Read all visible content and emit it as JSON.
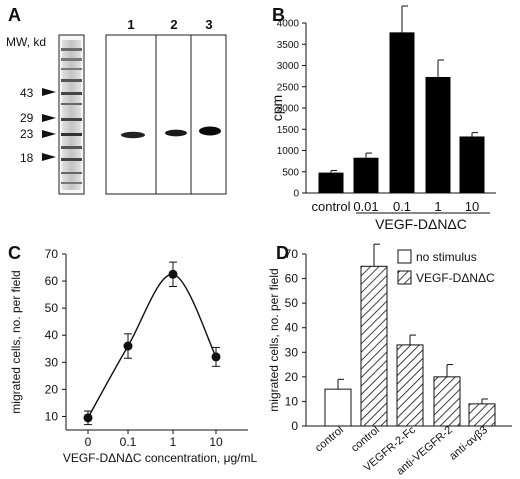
{
  "panels": {
    "A": {
      "label": "A",
      "mw_header": "MW, kd",
      "markers": [
        "43",
        "29",
        "23",
        "18"
      ],
      "lanes": [
        "1",
        "2",
        "3"
      ]
    },
    "B": {
      "label": "B"
    },
    "C": {
      "label": "C"
    },
    "D": {
      "label": "D"
    }
  },
  "chart_data": [
    {
      "panel": "B",
      "type": "bar",
      "categories": [
        "control",
        "0.01",
        "0.1",
        "1",
        "10"
      ],
      "values": [
        480,
        830,
        3780,
        2730,
        1330
      ],
      "errors": [
        50,
        110,
        620,
        400,
        90
      ],
      "ylabel": "cpm",
      "group_label": "VEGF-DΔNΔC",
      "ylim": [
        0,
        4000
      ],
      "yticks": [
        "0",
        "500",
        "1000",
        "1500",
        "2000",
        "2500",
        "3000",
        "3500",
        "4000"
      ],
      "bar_color": "#000000"
    },
    {
      "panel": "C",
      "type": "line",
      "x": [
        "0",
        "0.1",
        "1",
        "10"
      ],
      "values": [
        9.5,
        36,
        62.5,
        32
      ],
      "errors": [
        2.5,
        4.5,
        4.5,
        3.5
      ],
      "xlabel": "VEGF-DΔNΔC concentration, μg/mL",
      "ylabel": "migrated cells, no. per field",
      "ylim": [
        5,
        70
      ],
      "yticks": [
        "10",
        "20",
        "30",
        "40",
        "50",
        "60",
        "70"
      ]
    },
    {
      "panel": "D",
      "type": "bar",
      "categories": [
        "control",
        "control",
        "VEGFR-2-Fc",
        "anti-VEGFR-2",
        "anti-αvβ3"
      ],
      "values": [
        15,
        65,
        33,
        20,
        9
      ],
      "errors": [
        4,
        9,
        4,
        5,
        2
      ],
      "fills": [
        "open",
        "hatched",
        "hatched",
        "hatched",
        "hatched"
      ],
      "ylabel": "migrated cells, no. per field",
      "ylim": [
        0,
        70
      ],
      "yticks": [
        "0",
        "10",
        "20",
        "30",
        "40",
        "50",
        "60",
        "70"
      ],
      "legend": [
        "no stimulus",
        "VEGF-DΔNΔC"
      ]
    }
  ]
}
